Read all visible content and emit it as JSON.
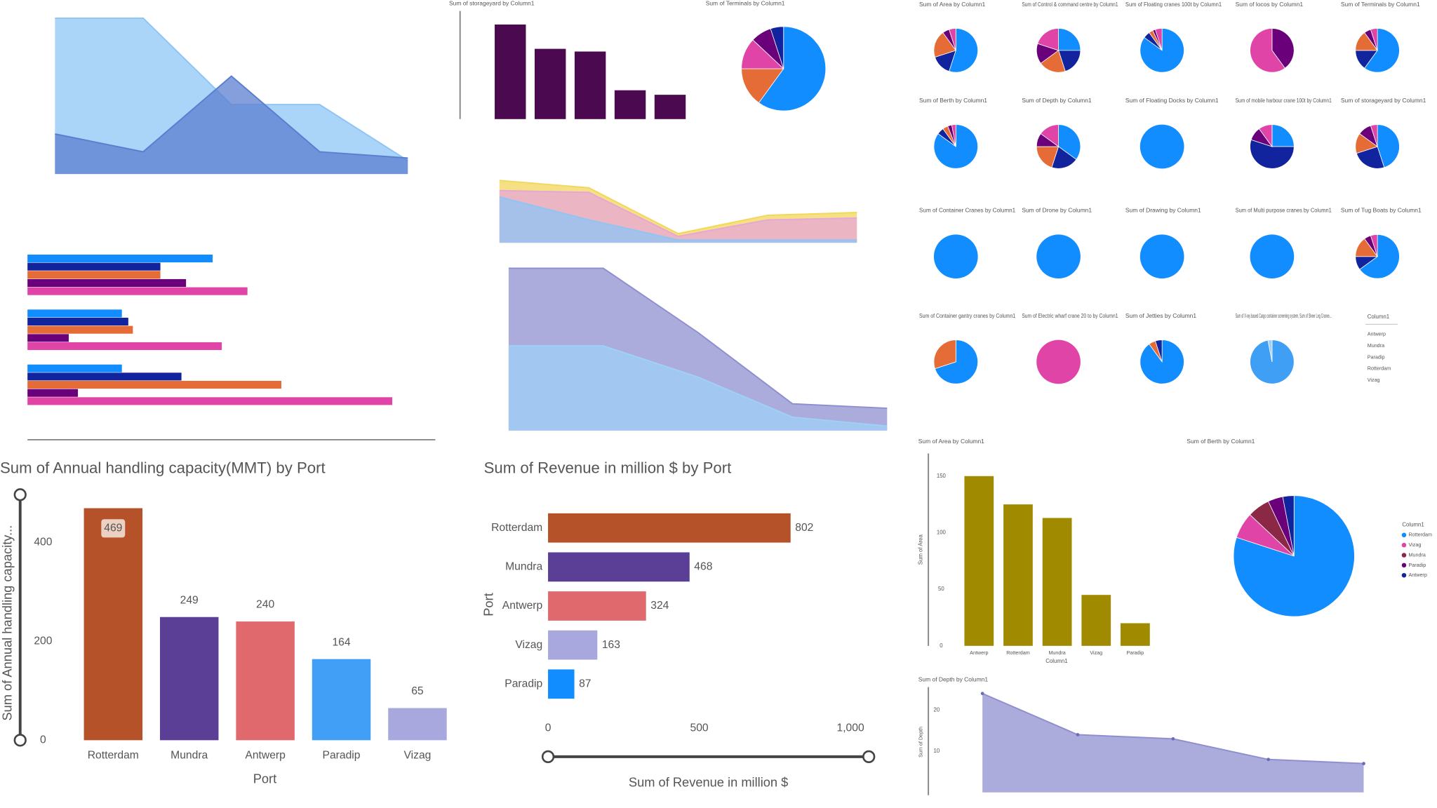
{
  "chart_data": [
    {
      "type": "area",
      "ylim": [
        0,
        180
      ],
      "series": [
        {
          "color": "#8ec5f5",
          "values": [
            175,
            175,
            78,
            78,
            15
          ]
        },
        {
          "color": "#5b7fd0",
          "values": [
            45,
            25,
            110,
            25,
            18
          ]
        }
      ]
    },
    {
      "type": "bar",
      "title": "Sum of storageyard by Column1",
      "color": "#4b0a4f",
      "ylim": [
        0,
        120
      ],
      "values": [
        105,
        78,
        75,
        32,
        27
      ]
    },
    {
      "type": "pie",
      "title": "Sum of Terminals by Column1",
      "values": [
        60,
        15,
        12,
        8,
        5
      ],
      "colors": [
        "#118dff",
        "#e66c37",
        "#e044a7",
        "#6b007b",
        "#12239e"
      ]
    },
    {
      "type": "area",
      "ylim": [
        0,
        75
      ],
      "series": [
        {
          "color": "#f2d75a",
          "values": [
            68,
            60,
            10,
            30,
            33
          ]
        },
        {
          "color": "#e7a6d8",
          "values": [
            57,
            55,
            7,
            25,
            27
          ]
        },
        {
          "color": "#8ec5f5",
          "values": [
            50,
            25,
            3,
            3,
            3
          ]
        }
      ]
    },
    {
      "type": "hbar",
      "xlim": [
        0,
        450
      ],
      "series": [
        {
          "color": "#118dff",
          "values": [
            202,
            103,
            103
          ]
        },
        {
          "color": "#12239e",
          "values": [
            145,
            110,
            168
          ]
        },
        {
          "color": "#e66c37",
          "values": [
            145,
            115,
            277
          ]
        },
        {
          "color": "#6b007b",
          "values": [
            173,
            45,
            55
          ]
        },
        {
          "color": "#e044a7",
          "values": [
            240,
            212,
            398
          ]
        }
      ]
    },
    {
      "type": "area",
      "ylim": [
        0,
        190
      ],
      "series": [
        {
          "color": "#8f8fd0",
          "values": [
            182,
            182,
            110,
            30,
            25
          ]
        },
        {
          "color": "#9fd0f8",
          "values": [
            95,
            95,
            60,
            15,
            5
          ]
        }
      ]
    },
    {
      "type": "pie",
      "title": "Sum of Area by Column1",
      "values": [
        55,
        15,
        20,
        5,
        5
      ],
      "colors": [
        "#118dff",
        "#12239e",
        "#e66c37",
        "#6b007b",
        "#e044a7"
      ]
    },
    {
      "type": "pie",
      "title": "Sum of Control & command centre by Column1",
      "values": [
        25,
        20,
        20,
        15,
        20
      ],
      "colors": [
        "#118dff",
        "#12239e",
        "#e66c37",
        "#6b007b",
        "#e044a7"
      ]
    },
    {
      "type": "pie",
      "title": "Sum of Floating cranes 100t by Column1",
      "values": [
        85,
        5,
        3,
        2,
        5
      ],
      "colors": [
        "#118dff",
        "#12239e",
        "#e66c37",
        "#6b007b",
        "#e044a7"
      ]
    },
    {
      "type": "pie",
      "title": "Sum of locos by Column1",
      "values": [
        40,
        60
      ],
      "colors": [
        "#6b007b",
        "#e044a7"
      ]
    },
    {
      "type": "pie",
      "title": "Sum of Terminals by Column1",
      "values": [
        60,
        15,
        15,
        5,
        5
      ],
      "colors": [
        "#118dff",
        "#12239e",
        "#e66c37",
        "#6b007b",
        "#e044a7"
      ]
    },
    {
      "type": "pie",
      "title": "Sum of Berth by Column1",
      "values": [
        85,
        5,
        4,
        3,
        3
      ],
      "colors": [
        "#118dff",
        "#12239e",
        "#e66c37",
        "#6b007b",
        "#e044a7"
      ]
    },
    {
      "type": "pie",
      "title": "Sum of Depth by Column1",
      "values": [
        35,
        20,
        20,
        10,
        15
      ],
      "colors": [
        "#118dff",
        "#12239e",
        "#e66c37",
        "#6b007b",
        "#e044a7"
      ]
    },
    {
      "type": "pie",
      "title": "Sum of Floating Docks by Column1",
      "values": [
        100
      ],
      "colors": [
        "#118dff"
      ]
    },
    {
      "type": "pie",
      "title": "Sum of mobile harbour crane 100t by Column1",
      "values": [
        25,
        55,
        10,
        10
      ],
      "colors": [
        "#118dff",
        "#12239e",
        "#6b007b",
        "#e044a7"
      ]
    },
    {
      "type": "pie",
      "title": "Sum of storageyard by Column1",
      "values": [
        45,
        25,
        15,
        10,
        5
      ],
      "colors": [
        "#118dff",
        "#12239e",
        "#e66c37",
        "#6b007b",
        "#e044a7"
      ]
    },
    {
      "type": "pie",
      "title": "Sum of Container Cranes by Column1",
      "values": [
        100
      ],
      "colors": [
        "#118dff"
      ]
    },
    {
      "type": "pie",
      "title": "Sum of Drone by Column1",
      "values": [
        100
      ],
      "colors": [
        "#118dff"
      ]
    },
    {
      "type": "pie",
      "title": "Sum of Drawing by Column1",
      "values": [
        100
      ],
      "colors": [
        "#118dff"
      ]
    },
    {
      "type": "pie",
      "title": "Sum of Multi purpose cranes by Column1",
      "values": [
        100
      ],
      "colors": [
        "#118dff"
      ]
    },
    {
      "type": "pie",
      "title": "Sum of Tug Boats by Column1",
      "values": [
        65,
        10,
        15,
        5,
        5
      ],
      "colors": [
        "#118dff",
        "#12239e",
        "#e66c37",
        "#6b007b",
        "#e044a7"
      ]
    },
    {
      "type": "pie",
      "title": "Sum of Container gantry cranes by Column1",
      "values": [
        70,
        30
      ],
      "colors": [
        "#118dff",
        "#e66c37"
      ]
    },
    {
      "type": "pie",
      "title": "Sum of Electric wharf crane 20 to by Column1",
      "values": [
        100
      ],
      "colors": [
        "#e044a7"
      ]
    },
    {
      "type": "pie",
      "title": "Sum of Jetties by Column1",
      "values": [
        90,
        5,
        5
      ],
      "colors": [
        "#118dff",
        "#e66c37",
        "#12239e"
      ]
    },
    {
      "type": "pie",
      "title": "Sum of X-ray based Cargo container screening system, Sum of Sheer Leg Cranes...",
      "values": [
        97,
        3
      ],
      "colors": [
        "#3f9ff5",
        "#9fd0f8"
      ]
    },
    {
      "type": "bar",
      "title": "Sum of Annual handling capacity(MMT) by Port",
      "x_label": "Port",
      "y_label": "Sum of Annual handling capacity...",
      "categories": [
        "Rotterdam",
        "Mundra",
        "Antwerp",
        "Paradip",
        "Vizag"
      ],
      "values": [
        469,
        249,
        240,
        164,
        65
      ],
      "colors": [
        "#b5522a",
        "#5b3f96",
        "#e0696e",
        "#41a0f5",
        "#a8a8de"
      ],
      "ylim": [
        0,
        500
      ],
      "yticks": [
        0,
        200,
        400
      ],
      "data_labels": true
    },
    {
      "type": "hbar",
      "title": "Sum of Revenue in million $ by Port",
      "x_label": "Sum of Revenue in million $",
      "y_label": "Port",
      "categories": [
        "Rotterdam",
        "Mundra",
        "Antwerp",
        "Vizag",
        "Paradip"
      ],
      "values": [
        802,
        468,
        324,
        163,
        87
      ],
      "colors": [
        "#b5522a",
        "#5b3f96",
        "#e0696e",
        "#a8a8de",
        "#118dff"
      ],
      "xlim": [
        0,
        1000
      ],
      "xticks": [
        0,
        500,
        {
          "value": 1000,
          "label": "1,000"
        }
      ],
      "data_labels": true
    },
    {
      "type": "bar",
      "title": "Sum of Area by Column1",
      "x_label": "Column1",
      "y_label": "Sum of Area",
      "color": "#a08a00",
      "categories": [
        "Antwerp",
        "Rotterdam",
        "Mundra",
        "Vizag",
        "Paradip"
      ],
      "values": [
        150,
        125,
        113,
        45,
        20
      ],
      "ylim": [
        0,
        170
      ],
      "yticks": [
        0,
        50,
        100,
        150
      ]
    },
    {
      "type": "pie",
      "title": "Sum of Berth by Column1",
      "legend_title": "Column1",
      "categories": [
        "Rotterdam",
        "Vizag",
        "Mundra",
        "Paradip",
        "Antwerp"
      ],
      "values": [
        80,
        7,
        6,
        4,
        3
      ],
      "colors": [
        "#118dff",
        "#e044a7",
        "#8a2846",
        "#6b007b",
        "#12239e"
      ]
    },
    {
      "type": "area",
      "title": "Sum of Depth by Column1",
      "y_label": "Sum of Depth",
      "ylim": [
        0,
        26
      ],
      "yticks": [
        10,
        20
      ],
      "series": [
        {
          "color": "#8f8fd0",
          "values": [
            24,
            14,
            13,
            8,
            7
          ]
        }
      ]
    }
  ],
  "slicer": {
    "title": "Column1",
    "items": [
      "Antwerp",
      "Mundra",
      "Paradip",
      "Rotterdam",
      "Vizag"
    ]
  }
}
